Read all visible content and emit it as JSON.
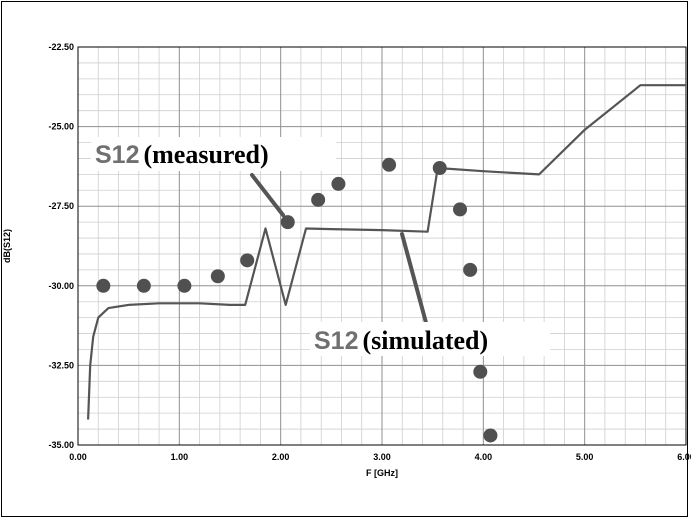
{
  "chart_data": {
    "type": "line",
    "xlabel": "F [GHz]",
    "ylabel": "dB(S12)",
    "xlim": [
      0,
      6
    ],
    "ylim": [
      -35,
      -22.5
    ],
    "x_ticks": [
      "0.00",
      "1.00",
      "2.00",
      "3.00",
      "4.00",
      "5.00",
      "6.00"
    ],
    "y_ticks": [
      "-22.50",
      "-25.00",
      "-27.50",
      "-30.00",
      "-32.50",
      "-35.00"
    ],
    "grid": true,
    "series": [
      {
        "name": "S12(simulated)",
        "style": "line",
        "color": "#555555",
        "x": [
          0.1,
          0.12,
          0.15,
          0.2,
          0.3,
          0.5,
          0.8,
          1.2,
          1.5,
          1.65,
          1.85,
          2.05,
          2.25,
          2.5,
          3.0,
          3.45,
          3.55,
          4.0,
          4.55,
          5.0,
          5.55,
          6.0
        ],
        "y": [
          -34.2,
          -32.5,
          -31.6,
          -31.0,
          -30.7,
          -30.6,
          -30.55,
          -30.55,
          -30.6,
          -30.6,
          -28.2,
          -30.6,
          -28.2,
          -28.22,
          -28.25,
          -28.3,
          -26.3,
          -26.4,
          -26.5,
          -25.1,
          -23.7,
          -23.7
        ]
      },
      {
        "name": "S12(measured)",
        "style": "scatter",
        "color": "#505050",
        "x": [
          0.25,
          0.65,
          1.05,
          1.38,
          1.67,
          2.07,
          2.37,
          2.57,
          3.07,
          3.57,
          3.77,
          3.87,
          3.97,
          4.07
        ],
        "y": [
          -30.0,
          -30.0,
          -30.0,
          -29.7,
          -29.2,
          -28.0,
          -27.3,
          -26.8,
          -26.2,
          -26.3,
          -27.6,
          -29.5,
          -32.7,
          -34.7
        ]
      }
    ],
    "annotations": {
      "measured": {
        "s12": "S12",
        "rest": "(measured)"
      },
      "simulated": {
        "s12": "S12",
        "rest": "(simulated)"
      }
    }
  }
}
